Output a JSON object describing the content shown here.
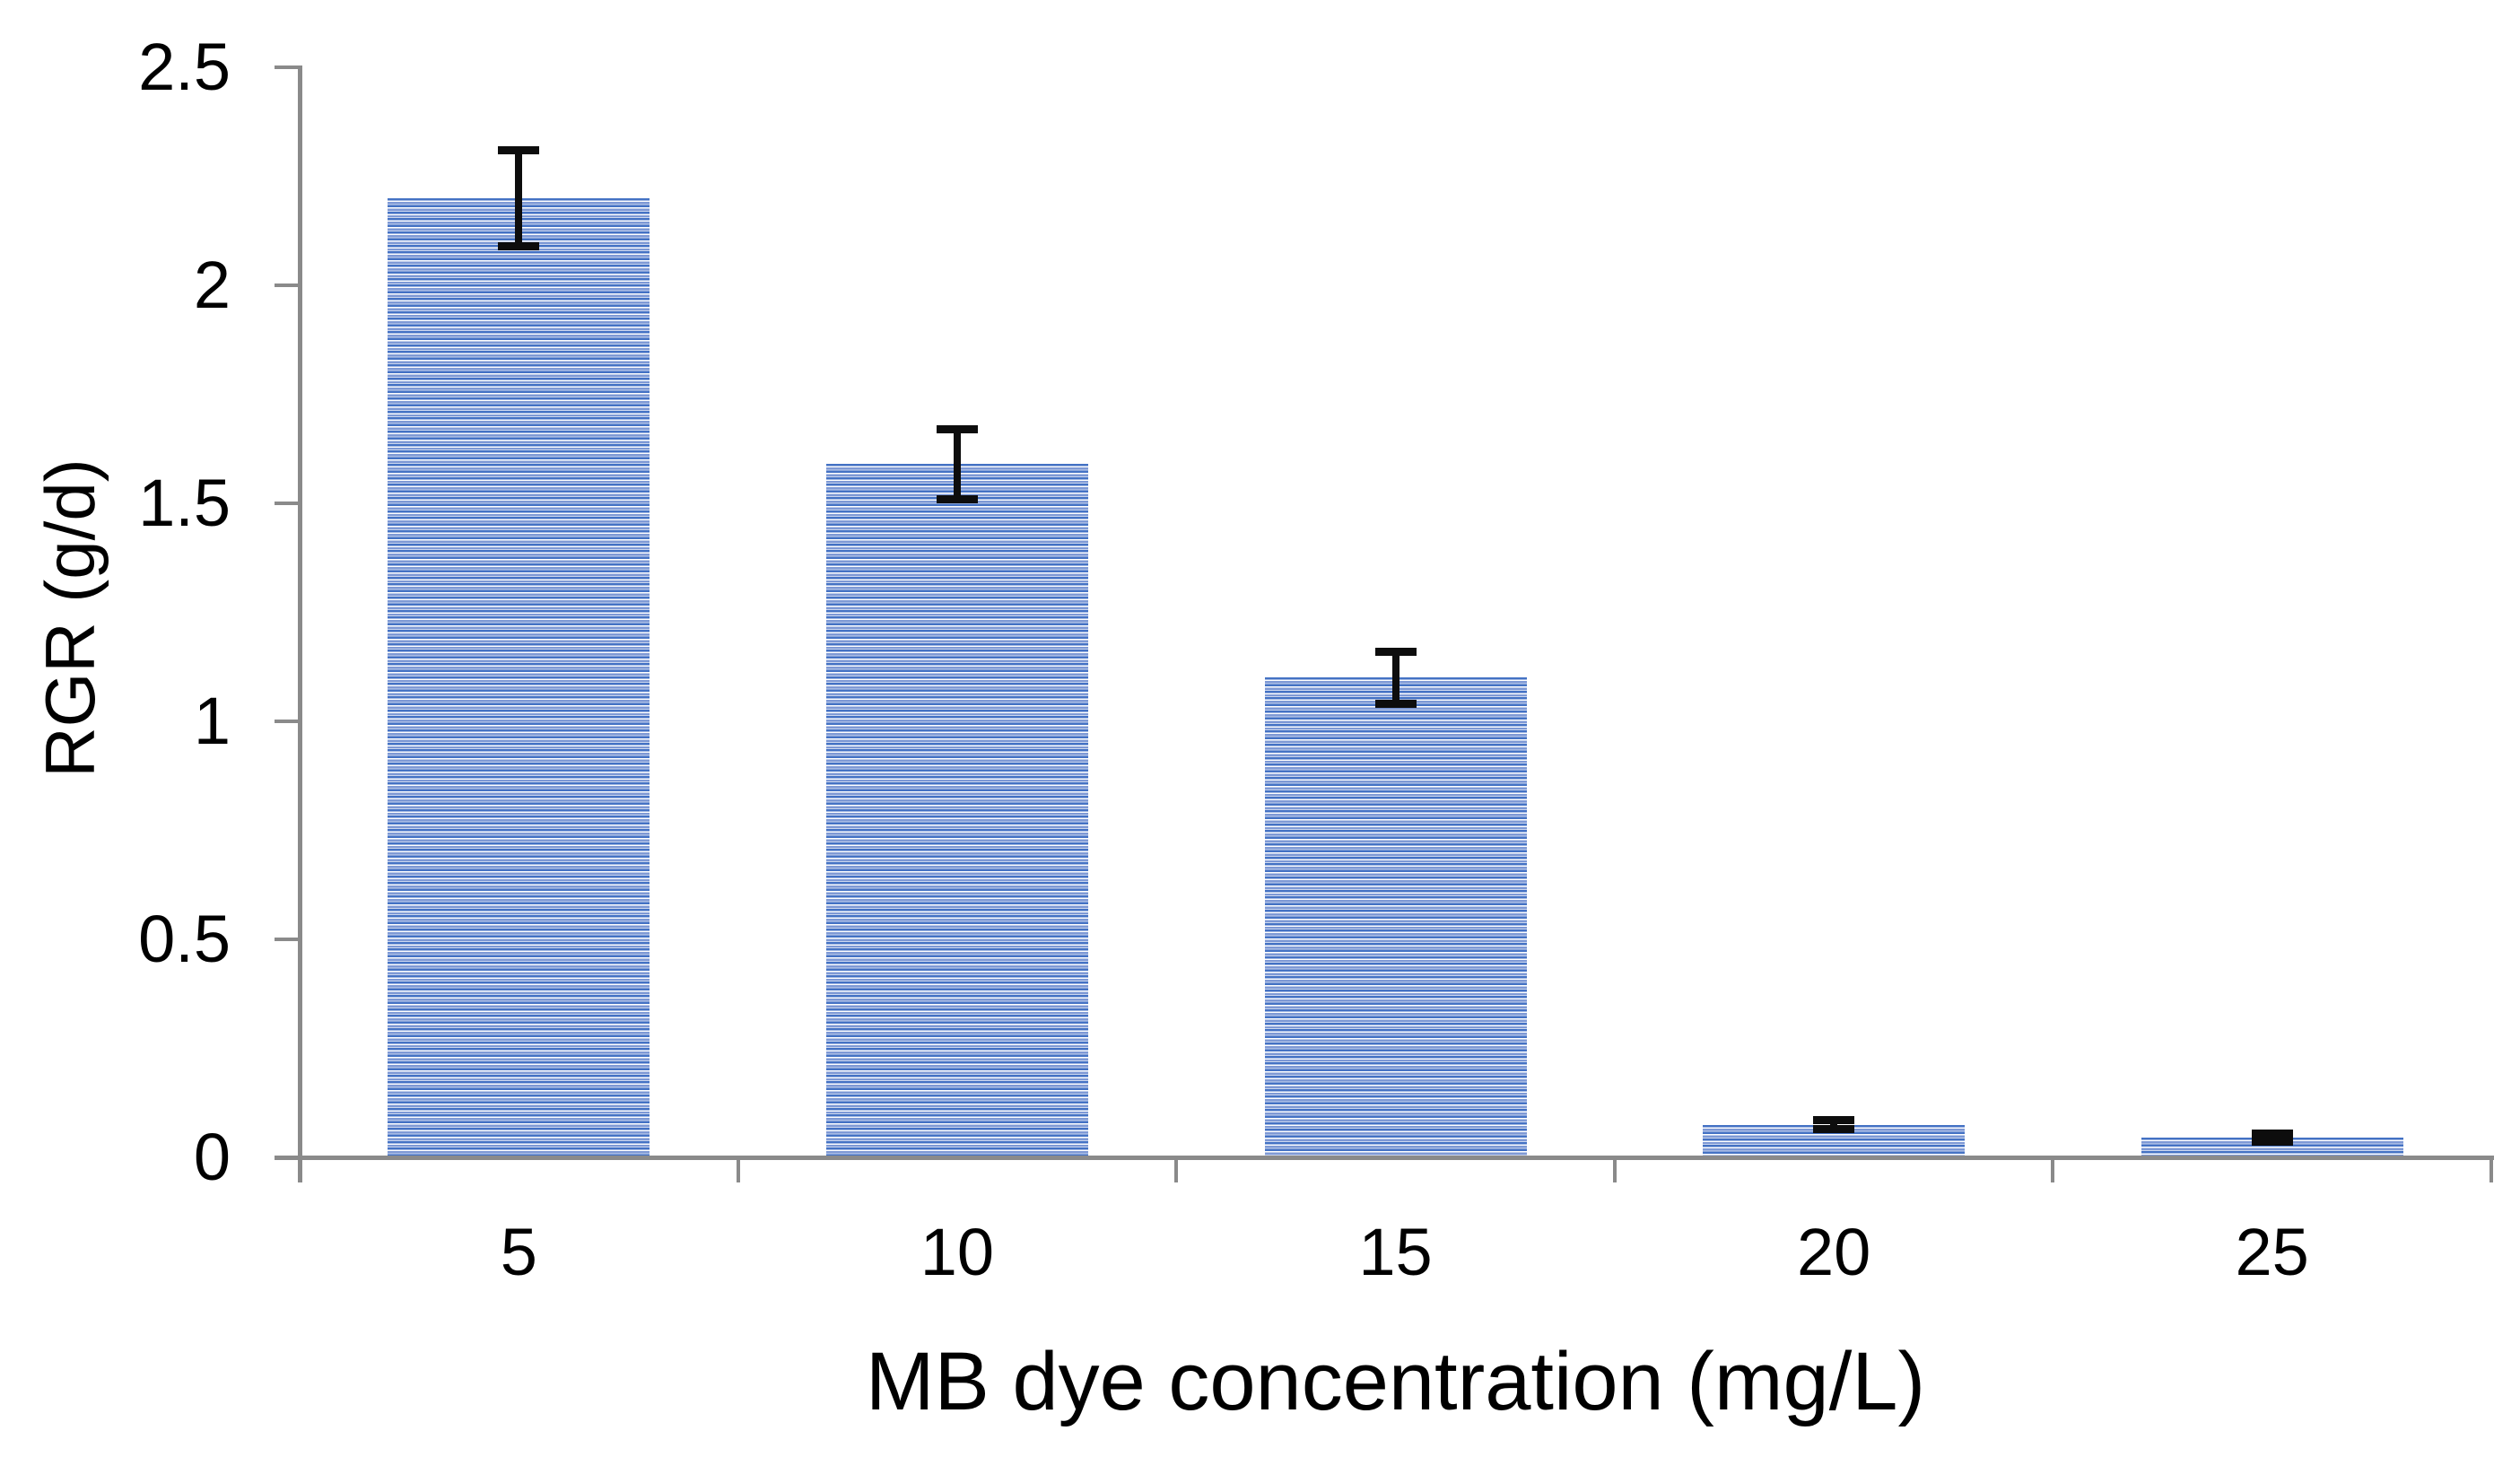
{
  "chart_data": {
    "type": "bar",
    "title": "",
    "xlabel": "MB dye concentration (mg/L)",
    "ylabel": "RGR (g/d)",
    "categories": [
      "5",
      "10",
      "15",
      "20",
      "25"
    ],
    "values": [
      2.2,
      1.59,
      1.1,
      0.075,
      0.045
    ],
    "error_bars": [
      0.11,
      0.08,
      0.06,
      0.01,
      0.01
    ],
    "ylim": [
      0,
      2.5
    ],
    "ytick_step": 0.5,
    "yticks": [
      "0",
      "0.5",
      "1",
      "1.5",
      "2",
      "2.5"
    ],
    "grid": false,
    "legend": "none",
    "bar_fill_style": "horizontal-stripe-pattern",
    "bar_width_fraction": 0.6
  },
  "colors": {
    "axis": "#8a8a8a",
    "text": "#000000",
    "error_bar": "#0d0d0d",
    "bar_stripe_dark": "#4472c4",
    "bar_stripe_mid": "#7e99d5",
    "bar_stripe_light": "#ccd7ef",
    "bar_stripe_bg": "#ffffff"
  }
}
